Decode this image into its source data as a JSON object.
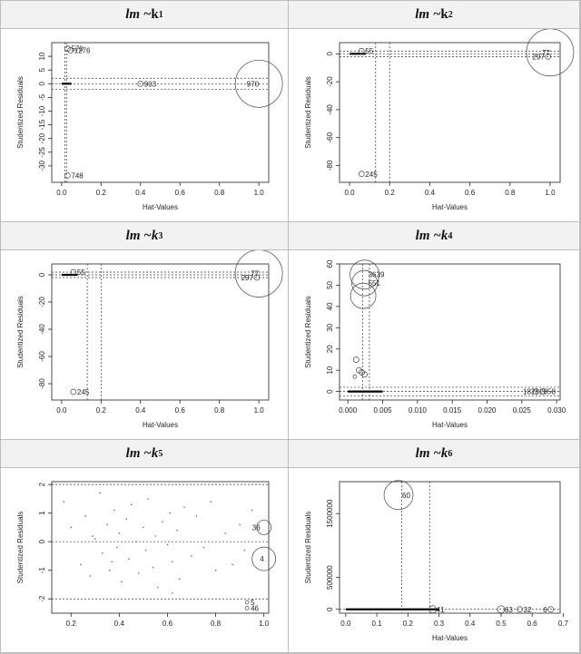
{
  "panels": [
    {
      "title_main": "lm ~ ",
      "title_k": "k",
      "title_sub": "1",
      "k_italic": false
    },
    {
      "title_main": "lm ~ ",
      "title_k": "k",
      "title_sub": "2",
      "k_italic": false
    },
    {
      "title_main": "lm ~ ",
      "title_k": "k",
      "title_sub": "3",
      "k_italic": true
    },
    {
      "title_main": "lm ~ ",
      "title_k": "k",
      "title_sub": "4",
      "k_italic": true
    },
    {
      "title_main": "lm ~ ",
      "title_k": "k",
      "title_sub": "5",
      "k_italic": true
    },
    {
      "title_main": "lm ~ ",
      "title_k": "k",
      "title_sub": "6",
      "k_italic": true
    }
  ],
  "chart_data": [
    {
      "type": "scatter",
      "xlabel": "Hat-Values",
      "ylabel": "Studentized Residuals",
      "xlim": [
        -0.05,
        1.05
      ],
      "ylim": [
        -36,
        15
      ],
      "xticks": [
        "0.0",
        "0.2",
        "0.4",
        "0.6",
        "0.8",
        "1.0"
      ],
      "xtick_vals": [
        0,
        0.2,
        0.4,
        0.6,
        0.8,
        1.0
      ],
      "yticks": [
        "-30",
        "-25",
        "-20",
        "-15",
        "-10",
        "-5",
        "0",
        "5",
        "10"
      ],
      "ytick_vals": [
        -30,
        -25,
        -20,
        -15,
        -10,
        -5,
        0,
        5,
        10
      ],
      "hlines": [
        -2,
        0,
        2
      ],
      "vlines": [
        0.017,
        0.025
      ],
      "points": [
        {
          "x": 0.03,
          "y": 12.8,
          "r": 3,
          "label": "570"
        },
        {
          "x": 0.045,
          "y": 12.2,
          "r": 3,
          "label": "1276"
        },
        {
          "x": 0.4,
          "y": 0,
          "r": 3,
          "label": "903"
        },
        {
          "x": 1.0,
          "y": 0,
          "r": 26,
          "label": "970"
        },
        {
          "x": 0.03,
          "y": -33.5,
          "r": 3,
          "label": "748"
        }
      ],
      "cluster": {
        "x0": 0.0,
        "x1": 0.05,
        "y": 0
      }
    },
    {
      "type": "scatter",
      "xlabel": "Hat-Values",
      "ylabel": "Studentized Residuals",
      "xlim": [
        -0.05,
        1.05
      ],
      "ylim": [
        -92,
        8
      ],
      "xticks": [
        "0.0",
        "0.2",
        "0.4",
        "0.6",
        "0.8",
        "1.0"
      ],
      "xtick_vals": [
        0,
        0.2,
        0.4,
        0.6,
        0.8,
        1.0
      ],
      "yticks": [
        "-80",
        "-60",
        "-40",
        "-20",
        "0"
      ],
      "ytick_vals": [
        -80,
        -60,
        -40,
        -20,
        0
      ],
      "hlines": [
        -2,
        0,
        2
      ],
      "vlines": [
        0.13,
        0.2
      ],
      "points": [
        {
          "x": 0.06,
          "y": 2,
          "r": 3,
          "label": "55"
        },
        {
          "x": 1.0,
          "y": 1,
          "r": 26,
          "label": "77"
        },
        {
          "x": 0.99,
          "y": -2,
          "r": 3,
          "label": "297"
        },
        {
          "x": 0.06,
          "y": -86,
          "r": 3,
          "label": "245"
        }
      ],
      "cluster": {
        "x0": 0.0,
        "x1": 0.08,
        "y": 0
      }
    },
    {
      "type": "scatter",
      "xlabel": "Hat-Values",
      "ylabel": "Studentized Residuals",
      "xlim": [
        -0.05,
        1.05
      ],
      "ylim": [
        -92,
        8
      ],
      "xticks": [
        "0.0",
        "0.2",
        "0.4",
        "0.6",
        "0.8",
        "1.0"
      ],
      "xtick_vals": [
        0,
        0.2,
        0.4,
        0.6,
        0.8,
        1.0
      ],
      "yticks": [
        "-80",
        "-60",
        "-40",
        "-20",
        "0"
      ],
      "ytick_vals": [
        -80,
        -60,
        -40,
        -20,
        0
      ],
      "hlines": [
        -2,
        0,
        2
      ],
      "vlines": [
        0.13,
        0.2
      ],
      "points": [
        {
          "x": 0.06,
          "y": 2,
          "r": 3,
          "label": "55"
        },
        {
          "x": 1.0,
          "y": 1,
          "r": 26,
          "label": "77"
        },
        {
          "x": 0.99,
          "y": -2,
          "r": 3,
          "label": "297"
        },
        {
          "x": 0.06,
          "y": -86,
          "r": 3,
          "label": "245"
        }
      ],
      "cluster": {
        "x0": 0.0,
        "x1": 0.08,
        "y": 0
      }
    },
    {
      "type": "scatter",
      "xlabel": "Hat-Values",
      "ylabel": "Studentized Residuals",
      "xlim": [
        -0.0012,
        0.0305
      ],
      "ylim": [
        -4,
        60
      ],
      "xticks": [
        "0.000",
        "0.005",
        "0.010",
        "0.015",
        "0.020",
        "0.025",
        "0.030"
      ],
      "xtick_vals": [
        0,
        0.005,
        0.01,
        0.015,
        0.02,
        0.025,
        0.03
      ],
      "yticks": [
        "0",
        "10",
        "20",
        "30",
        "40",
        "50",
        "60"
      ],
      "ytick_vals": [
        0,
        10,
        20,
        30,
        40,
        50,
        60
      ],
      "hlines": [
        -2,
        0,
        2
      ],
      "vlines": [
        0.0021,
        0.0031
      ],
      "points": [
        {
          "x": 0.0024,
          "y": 55,
          "r": 16,
          "label": "3639"
        },
        {
          "x": 0.0024,
          "y": 51,
          "r": 14,
          "label": "551"
        },
        {
          "x": 0.0022,
          "y": 45,
          "r": 14,
          "label": ""
        },
        {
          "x": 0.0012,
          "y": 15,
          "r": 3,
          "label": ""
        },
        {
          "x": 0.0016,
          "y": 10,
          "r": 3,
          "label": ""
        },
        {
          "x": 0.002,
          "y": 9,
          "r": 3,
          "label": ""
        },
        {
          "x": 0.0024,
          "y": 8,
          "r": 3,
          "label": ""
        },
        {
          "x": 0.001,
          "y": 7,
          "r": 2,
          "label": ""
        },
        {
          "x": 0.027,
          "y": 0,
          "r": 3,
          "label": "2858"
        },
        {
          "x": 0.028,
          "y": 0,
          "r": 3,
          "label": "1826"
        }
      ],
      "cluster": {
        "x0": 0.0,
        "x1": 0.005,
        "y": 0
      }
    },
    {
      "type": "scatter",
      "xlabel": "",
      "ylabel": "Studentized Residuals",
      "xlim": [
        0.12,
        1.02
      ],
      "ylim": [
        -2.5,
        2.1
      ],
      "xticks": [
        "0.2",
        "0.4",
        "0.6",
        "0.8",
        "1.0"
      ],
      "xtick_vals": [
        0.2,
        0.4,
        0.6,
        0.8,
        1.0
      ],
      "yticks": [
        "-2",
        "-1",
        "0",
        "1",
        "2"
      ],
      "ytick_vals": [
        -2,
        -1,
        0,
        1,
        2
      ],
      "hlines": [
        -2,
        0,
        2
      ],
      "vlines": [],
      "points": [
        {
          "x": 1.0,
          "y": 0.5,
          "r": 8,
          "label": "36"
        },
        {
          "x": 1.0,
          "y": -0.6,
          "r": 13,
          "label": "4"
        },
        {
          "x": 0.93,
          "y": -2.12,
          "r": 2,
          "label": "5"
        },
        {
          "x": 0.93,
          "y": -2.32,
          "r": 2,
          "label": "46"
        }
      ],
      "scatter": [
        [
          0.17,
          1.4
        ],
        [
          0.2,
          0.5
        ],
        [
          0.24,
          -0.8
        ],
        [
          0.26,
          0.9
        ],
        [
          0.28,
          -1.2
        ],
        [
          0.3,
          0.1
        ],
        [
          0.32,
          1.7
        ],
        [
          0.33,
          -0.4
        ],
        [
          0.35,
          0.6
        ],
        [
          0.36,
          -1.0
        ],
        [
          0.38,
          1.1
        ],
        [
          0.39,
          -0.2
        ],
        [
          0.4,
          0.3
        ],
        [
          0.41,
          -1.4
        ],
        [
          0.43,
          0.8
        ],
        [
          0.44,
          -0.6
        ],
        [
          0.45,
          1.3
        ],
        [
          0.47,
          0.0
        ],
        [
          0.48,
          -1.1
        ],
        [
          0.5,
          0.5
        ],
        [
          0.51,
          -0.3
        ],
        [
          0.52,
          1.5
        ],
        [
          0.54,
          -0.9
        ],
        [
          0.55,
          0.2
        ],
        [
          0.56,
          -1.6
        ],
        [
          0.58,
          0.7
        ],
        [
          0.6,
          -0.1
        ],
        [
          0.61,
          1.0
        ],
        [
          0.62,
          -0.7
        ],
        [
          0.64,
          0.4
        ],
        [
          0.65,
          -1.3
        ],
        [
          0.67,
          1.2
        ],
        [
          0.7,
          -0.5
        ],
        [
          0.72,
          0.9
        ],
        [
          0.75,
          -0.2
        ],
        [
          0.78,
          1.4
        ],
        [
          0.8,
          -1.0
        ],
        [
          0.84,
          0.3
        ],
        [
          0.87,
          -0.8
        ],
        [
          0.9,
          0.6
        ],
        [
          0.92,
          -0.3
        ],
        [
          0.95,
          1.1
        ],
        [
          0.62,
          -1.8
        ],
        [
          0.37,
          -0.7
        ],
        [
          0.29,
          0.2
        ]
      ]
    },
    {
      "type": "scatter",
      "xlabel": "Hat-Values",
      "ylabel": "Studentized Residuals",
      "xlim": [
        -0.02,
        0.69
      ],
      "ylim": [
        -60000,
        2000000
      ],
      "xticks": [
        "0.0",
        "0.1",
        "0.2",
        "0.3",
        "0.4",
        "0.5",
        "0.6",
        "0.7"
      ],
      "xtick_vals": [
        0,
        0.1,
        0.2,
        0.3,
        0.4,
        0.5,
        0.6,
        0.7
      ],
      "yticks": [
        "0",
        "500000",
        "1500000"
      ],
      "ytick_vals": [
        0,
        500000,
        1500000
      ],
      "hlines": [
        0
      ],
      "vlines": [
        0.18,
        0.27
      ],
      "points": [
        {
          "x": 0.17,
          "y": 1790000,
          "r": 16,
          "label": "60"
        },
        {
          "x": 0.28,
          "y": 0,
          "r": 4,
          "label": "41"
        },
        {
          "x": 0.5,
          "y": 0,
          "r": 4,
          "label": "63"
        },
        {
          "x": 0.56,
          "y": 0,
          "r": 3,
          "label": "32"
        },
        {
          "x": 0.66,
          "y": 0,
          "r": 3,
          "label": "6"
        }
      ],
      "cluster": {
        "x0": 0.0,
        "x1": 0.3,
        "y": 0
      }
    }
  ]
}
